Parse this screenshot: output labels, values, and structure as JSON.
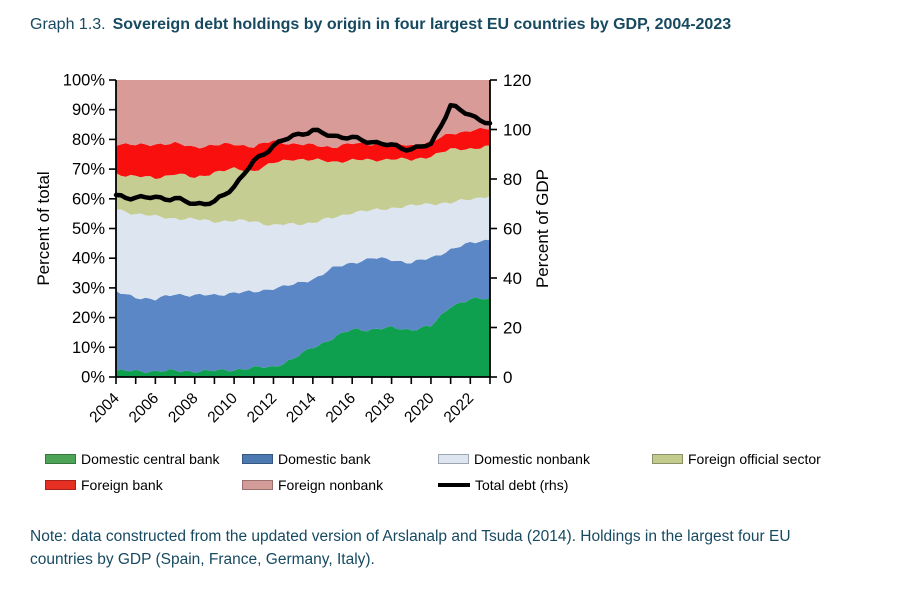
{
  "title": {
    "prefix": "Graph 1.3.",
    "main": "Sovereign debt holdings by origin in four largest EU countries by GDP, 2004-2023"
  },
  "note": "Note: data constructed from the updated version of Arslanalp and Tsuda (2014). Holdings in the largest four EU countries by GDP (Spain, France, Germany, Italy).",
  "colors": {
    "heading": "#174A61",
    "axis_line": "#000000",
    "tick_text": "#000000"
  },
  "chart_data": {
    "type": "area",
    "stacked": true,
    "grid": false,
    "x_start_year": 2004,
    "x_end_year": 2023,
    "years": [
      2004,
      2005,
      2006,
      2007,
      2008,
      2009,
      2010,
      2011,
      2012,
      2013,
      2014,
      2015,
      2016,
      2017,
      2018,
      2019,
      2020,
      2021,
      2022,
      2023
    ],
    "x_tick_labels": [
      "2004",
      "2006",
      "2008",
      "2010",
      "2012",
      "2014",
      "2016",
      "2018",
      "2020",
      "2022"
    ],
    "left_axis": {
      "label": "Percent of total",
      "min": 0,
      "max": 100,
      "step": 10,
      "suffix": "%"
    },
    "right_axis": {
      "label": "Percent of GDP",
      "min": 0,
      "max": 120,
      "step": 20
    },
    "series": [
      {
        "name": "Domestic central bank",
        "color": "#0FA04F",
        "swatch": "#4DA456",
        "values": [
          2,
          2,
          2,
          2,
          2,
          2,
          2.5,
          3,
          3.5,
          6,
          10,
          13,
          16,
          16,
          16.5,
          16,
          17,
          24,
          26,
          26.5
        ]
      },
      {
        "name": "Domestic bank",
        "color": "#5B87C7",
        "swatch": "#4C79B0",
        "values": [
          26.5,
          25,
          24,
          26,
          25.5,
          25.5,
          26,
          25.5,
          26.5,
          25,
          23,
          23.5,
          22.5,
          24,
          23,
          22.5,
          23,
          19,
          19,
          20
        ]
      },
      {
        "name": "Domestic nonbank",
        "color": "#DCE5F0",
        "swatch": "#DCE5F0",
        "values": [
          28,
          28,
          28,
          25.5,
          25.5,
          25,
          24,
          24,
          21,
          20.5,
          19,
          17,
          17,
          16,
          17.5,
          19,
          18.5,
          15.5,
          15,
          14.5
        ]
      },
      {
        "name": "Foreign official sector",
        "color": "#C6CD92",
        "swatch": "#C2CB8C",
        "values": [
          12,
          12.5,
          13,
          15,
          14,
          16.5,
          17.5,
          17,
          21,
          22,
          21,
          19,
          17.5,
          17,
          16.5,
          15.5,
          16,
          18,
          17,
          16.5
        ]
      },
      {
        "name": "Foreign bank",
        "color": "#FA0F0F",
        "swatch": "#E73024",
        "values": [
          10,
          10.5,
          11.5,
          10,
          10.5,
          9,
          8.5,
          8,
          7.5,
          5,
          5,
          5,
          5.5,
          5.5,
          5,
          5,
          4.5,
          5.5,
          6,
          6
        ]
      },
      {
        "name": "Foreign nonbank",
        "color": "#D99B98",
        "swatch": "#D49C99",
        "values": [
          21.5,
          22,
          21.5,
          21.5,
          22.5,
          22,
          21.5,
          22.5,
          20.5,
          21.5,
          22,
          22.5,
          21.5,
          21.5,
          21.5,
          22,
          21,
          18,
          17,
          16.5
        ]
      }
    ],
    "line_series": {
      "name": "Total debt (rhs)",
      "color": "#000000",
      "axis": "right",
      "values": [
        73,
        72.5,
        72.5,
        72,
        70,
        70.5,
        77,
        87,
        93.5,
        97.5,
        99.5,
        97.5,
        96.5,
        95,
        93.5,
        92,
        94,
        109.5,
        106,
        102
      ]
    },
    "legend_rows": [
      [
        0,
        1,
        2,
        3
      ],
      [
        4,
        5,
        "line"
      ]
    ]
  }
}
